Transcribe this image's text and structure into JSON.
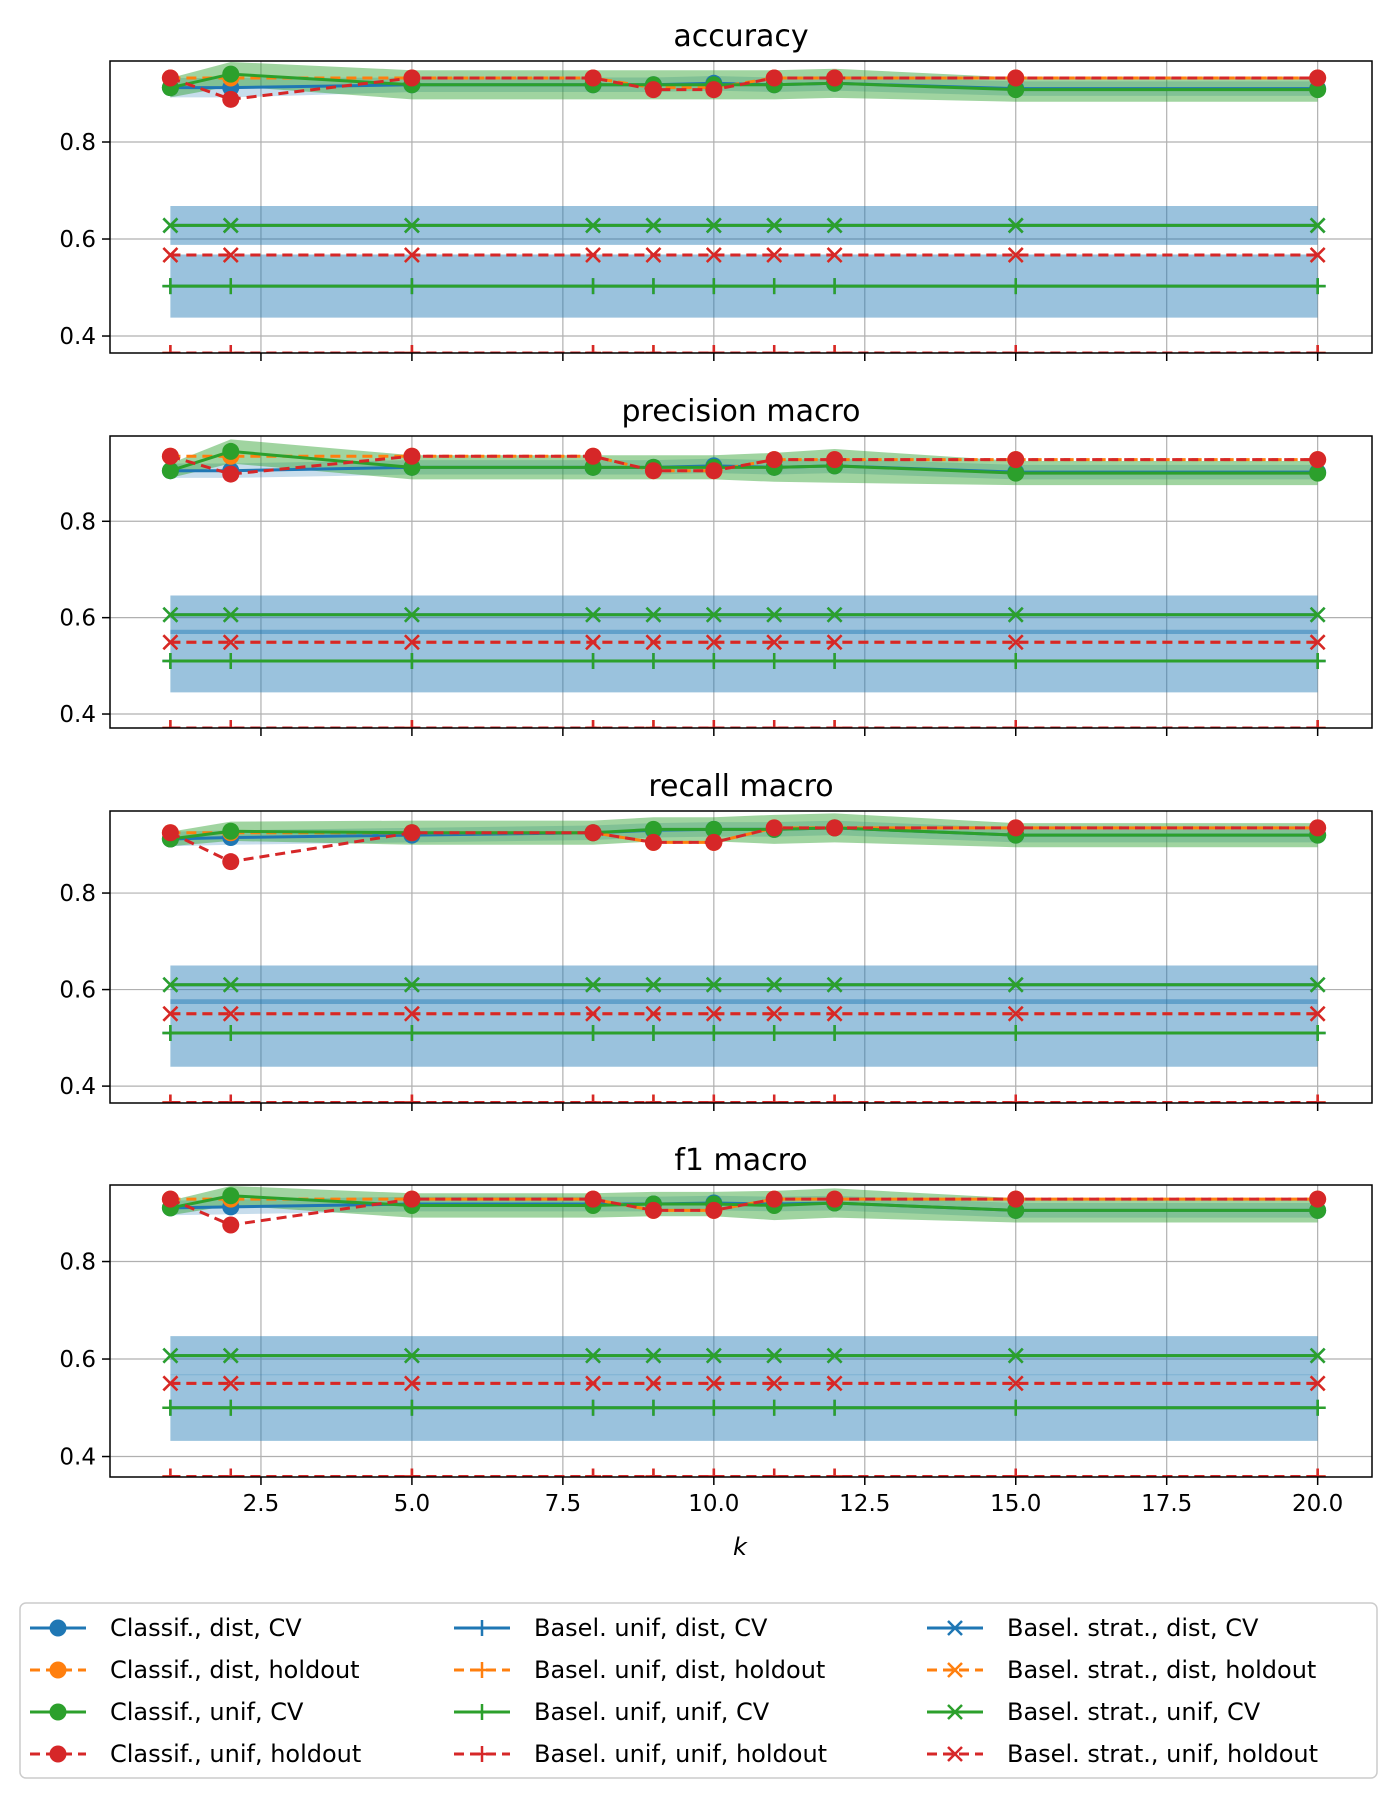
{
  "chart_data": {
    "type": "line",
    "xlabel": "k",
    "xlim": [
      0.0,
      20.9
    ],
    "x_ticks": [
      "2.5",
      "5.0",
      "7.5",
      "10.0",
      "12.5",
      "15.0",
      "17.5",
      "20.0"
    ],
    "y_ticks": [
      "0.4",
      "0.6",
      "0.8"
    ],
    "grid": true,
    "legend_position": "bottom, 3 columns",
    "colors": {
      "blue": "#1f77b4",
      "orange": "#ff7f0e",
      "green": "#2ca02c",
      "red": "#d62728"
    },
    "legend": [
      {
        "label": "Classif., dist, CV",
        "color": "#1f77b4",
        "dash": "solid",
        "marker": "o"
      },
      {
        "label": "Classif., dist, holdout",
        "color": "#ff7f0e",
        "dash": "dashed",
        "marker": "o"
      },
      {
        "label": "Classif., unif, CV",
        "color": "#2ca02c",
        "dash": "solid",
        "marker": "o"
      },
      {
        "label": "Classif., unif, holdout",
        "color": "#d62728",
        "dash": "dashed",
        "marker": "o"
      },
      {
        "label": "Basel. unif, dist, CV",
        "color": "#1f77b4",
        "dash": "solid",
        "marker": "+"
      },
      {
        "label": "Basel. unif, dist, holdout",
        "color": "#ff7f0e",
        "dash": "dashed",
        "marker": "+"
      },
      {
        "label": "Basel. unif, unif, CV",
        "color": "#2ca02c",
        "dash": "solid",
        "marker": "+"
      },
      {
        "label": "Basel. unif, unif, holdout",
        "color": "#d62728",
        "dash": "dashed",
        "marker": "+"
      },
      {
        "label": "Basel. strat., dist, CV",
        "color": "#1f77b4",
        "dash": "solid",
        "marker": "x"
      },
      {
        "label": "Basel. strat., dist, holdout",
        "color": "#ff7f0e",
        "dash": "dashed",
        "marker": "x"
      },
      {
        "label": "Basel. strat., unif, CV",
        "color": "#2ca02c",
        "dash": "solid",
        "marker": "x"
      },
      {
        "label": "Basel. strat., unif, holdout",
        "color": "#d62728",
        "dash": "dashed",
        "marker": "x"
      }
    ],
    "x": [
      1,
      2,
      5,
      8,
      9,
      10,
      11,
      12,
      15,
      20
    ],
    "panels": [
      {
        "title": "accuracy",
        "ylim": [
          0.365,
          0.967
        ],
        "series": [
          {
            "values": [
              0.912,
              0.912,
              0.918,
              0.918,
              0.918,
              0.921,
              0.918,
              0.921,
              0.91,
              0.91
            ],
            "band": [
              0.02,
              0.02,
              0.015,
              0.015,
              0.015,
              0.015,
              0.015,
              0.015,
              0.015,
              0.015
            ]
          },
          {
            "values": [
              0.932,
              0.932,
              0.932,
              0.932,
              0.912,
              0.912,
              0.932,
              0.932,
              0.932,
              0.932
            ]
          },
          {
            "values": [
              0.912,
              0.94,
              0.918,
              0.918,
              0.918,
              0.918,
              0.918,
              0.921,
              0.908,
              0.908
            ],
            "band": [
              0.02,
              0.025,
              0.03,
              0.03,
              0.03,
              0.03,
              0.03,
              0.03,
              0.025,
              0.025
            ]
          },
          {
            "values": [
              0.932,
              0.888,
              0.932,
              0.932,
              0.908,
              0.908,
              0.932,
              0.932,
              0.932,
              0.932
            ]
          },
          {
            "values": [
              0.503,
              0.503,
              0.503,
              0.503,
              0.503,
              0.503,
              0.503,
              0.503,
              0.503,
              0.503
            ],
            "band": [
              0.065,
              0.065,
              0.065,
              0.065,
              0.065,
              0.065,
              0.065,
              0.065,
              0.065,
              0.065
            ]
          },
          {
            "values": [
              0.365,
              0.365,
              0.365,
              0.365,
              0.365,
              0.365,
              0.365,
              0.365,
              0.365,
              0.365
            ]
          },
          {
            "values": [
              0.503,
              0.503,
              0.503,
              0.503,
              0.503,
              0.503,
              0.503,
              0.503,
              0.503,
              0.503
            ]
          },
          {
            "values": [
              0.365,
              0.365,
              0.365,
              0.365,
              0.365,
              0.365,
              0.365,
              0.365,
              0.365,
              0.365
            ]
          },
          {
            "values": [
              0.628,
              0.628,
              0.628,
              0.628,
              0.628,
              0.628,
              0.628,
              0.628,
              0.628,
              0.628
            ],
            "band": [
              0.04,
              0.04,
              0.04,
              0.04,
              0.04,
              0.04,
              0.04,
              0.04,
              0.04,
              0.04
            ]
          },
          {
            "values": [
              0.567,
              0.567,
              0.567,
              0.567,
              0.567,
              0.567,
              0.567,
              0.567,
              0.567,
              0.567
            ]
          },
          {
            "values": [
              0.628,
              0.628,
              0.628,
              0.628,
              0.628,
              0.628,
              0.628,
              0.628,
              0.628,
              0.628
            ]
          },
          {
            "values": [
              0.567,
              0.567,
              0.567,
              0.567,
              0.567,
              0.567,
              0.567,
              0.567,
              0.567,
              0.567
            ]
          }
        ]
      },
      {
        "title": "precision macro",
        "ylim": [
          0.371,
          0.977
        ],
        "series": [
          {
            "values": [
              0.905,
              0.905,
              0.912,
              0.912,
              0.912,
              0.915,
              0.912,
              0.915,
              0.902,
              0.902
            ],
            "band": [
              0.015,
              0.015,
              0.015,
              0.015,
              0.015,
              0.015,
              0.015,
              0.015,
              0.015,
              0.015
            ]
          },
          {
            "values": [
              0.935,
              0.935,
              0.935,
              0.935,
              0.905,
              0.905,
              0.928,
              0.928,
              0.928,
              0.928
            ]
          },
          {
            "values": [
              0.905,
              0.945,
              0.912,
              0.912,
              0.912,
              0.912,
              0.912,
              0.915,
              0.9,
              0.9
            ],
            "band": [
              0.015,
              0.025,
              0.025,
              0.025,
              0.025,
              0.025,
              0.03,
              0.035,
              0.025,
              0.025
            ]
          },
          {
            "values": [
              0.935,
              0.898,
              0.935,
              0.935,
              0.905,
              0.905,
              0.928,
              0.928,
              0.928,
              0.928
            ]
          },
          {
            "values": [
              0.51,
              0.51,
              0.51,
              0.51,
              0.51,
              0.51,
              0.51,
              0.51,
              0.51,
              0.51
            ],
            "band": [
              0.065,
              0.065,
              0.065,
              0.065,
              0.065,
              0.065,
              0.065,
              0.065,
              0.065,
              0.065
            ]
          },
          {
            "values": [
              0.371,
              0.371,
              0.371,
              0.371,
              0.371,
              0.371,
              0.371,
              0.371,
              0.371,
              0.371
            ]
          },
          {
            "values": [
              0.51,
              0.51,
              0.51,
              0.51,
              0.51,
              0.51,
              0.51,
              0.51,
              0.51,
              0.51
            ]
          },
          {
            "values": [
              0.371,
              0.371,
              0.371,
              0.371,
              0.371,
              0.371,
              0.371,
              0.371,
              0.371,
              0.371
            ]
          },
          {
            "values": [
              0.606,
              0.606,
              0.606,
              0.606,
              0.606,
              0.606,
              0.606,
              0.606,
              0.606,
              0.606
            ],
            "band": [
              0.04,
              0.04,
              0.04,
              0.04,
              0.04,
              0.04,
              0.04,
              0.04,
              0.04,
              0.04
            ]
          },
          {
            "values": [
              0.549,
              0.549,
              0.549,
              0.549,
              0.549,
              0.549,
              0.549,
              0.549,
              0.549,
              0.549
            ]
          },
          {
            "values": [
              0.606,
              0.606,
              0.606,
              0.606,
              0.606,
              0.606,
              0.606,
              0.606,
              0.606,
              0.606
            ]
          },
          {
            "values": [
              0.549,
              0.549,
              0.549,
              0.549,
              0.549,
              0.549,
              0.549,
              0.549,
              0.549,
              0.549
            ]
          }
        ]
      },
      {
        "title": "recall macro",
        "ylim": [
          0.365,
          0.97
        ],
        "series": [
          {
            "values": [
              0.912,
              0.915,
              0.92,
              0.925,
              0.93,
              0.932,
              0.932,
              0.935,
              0.92,
              0.92
            ],
            "band": [
              0.015,
              0.015,
              0.015,
              0.015,
              0.015,
              0.015,
              0.015,
              0.015,
              0.015,
              0.015
            ]
          },
          {
            "values": [
              0.925,
              0.925,
              0.925,
              0.925,
              0.905,
              0.905,
              0.935,
              0.935,
              0.935,
              0.935
            ]
          },
          {
            "values": [
              0.912,
              0.928,
              0.925,
              0.925,
              0.932,
              0.932,
              0.932,
              0.935,
              0.92,
              0.92
            ],
            "band": [
              0.015,
              0.02,
              0.025,
              0.025,
              0.025,
              0.025,
              0.03,
              0.03,
              0.025,
              0.025
            ]
          },
          {
            "values": [
              0.925,
              0.865,
              0.925,
              0.925,
              0.905,
              0.905,
              0.935,
              0.935,
              0.935,
              0.935
            ]
          },
          {
            "values": [
              0.51,
              0.51,
              0.51,
              0.51,
              0.51,
              0.51,
              0.51,
              0.51,
              0.51,
              0.51
            ],
            "band": [
              0.07,
              0.07,
              0.07,
              0.07,
              0.07,
              0.07,
              0.07,
              0.07,
              0.07,
              0.07
            ]
          },
          {
            "values": [
              0.366,
              0.366,
              0.366,
              0.366,
              0.366,
              0.366,
              0.366,
              0.366,
              0.366,
              0.366
            ]
          },
          {
            "values": [
              0.51,
              0.51,
              0.51,
              0.51,
              0.51,
              0.51,
              0.51,
              0.51,
              0.51,
              0.51
            ]
          },
          {
            "values": [
              0.366,
              0.366,
              0.366,
              0.366,
              0.366,
              0.366,
              0.366,
              0.366,
              0.366,
              0.366
            ]
          },
          {
            "values": [
              0.61,
              0.61,
              0.61,
              0.61,
              0.61,
              0.61,
              0.61,
              0.61,
              0.61,
              0.61
            ],
            "band": [
              0.04,
              0.04,
              0.04,
              0.04,
              0.04,
              0.04,
              0.04,
              0.04,
              0.04,
              0.04
            ]
          },
          {
            "values": [
              0.55,
              0.55,
              0.55,
              0.55,
              0.55,
              0.55,
              0.55,
              0.55,
              0.55,
              0.55
            ]
          },
          {
            "values": [
              0.61,
              0.61,
              0.61,
              0.61,
              0.61,
              0.61,
              0.61,
              0.61,
              0.61,
              0.61
            ]
          },
          {
            "values": [
              0.55,
              0.55,
              0.55,
              0.55,
              0.55,
              0.55,
              0.55,
              0.55,
              0.55,
              0.55
            ]
          }
        ]
      },
      {
        "title": "f1 macro",
        "ylim": [
          0.358,
          0.957
        ],
        "series": [
          {
            "values": [
              0.91,
              0.912,
              0.918,
              0.918,
              0.918,
              0.92,
              0.918,
              0.92,
              0.905,
              0.905
            ],
            "band": [
              0.015,
              0.015,
              0.015,
              0.015,
              0.015,
              0.015,
              0.015,
              0.015,
              0.015,
              0.015
            ]
          },
          {
            "values": [
              0.928,
              0.928,
              0.928,
              0.928,
              0.905,
              0.905,
              0.928,
              0.928,
              0.928,
              0.928
            ]
          },
          {
            "values": [
              0.91,
              0.935,
              0.915,
              0.915,
              0.918,
              0.918,
              0.915,
              0.92,
              0.905,
              0.905
            ],
            "band": [
              0.015,
              0.02,
              0.025,
              0.025,
              0.025,
              0.025,
              0.03,
              0.03,
              0.025,
              0.025
            ]
          },
          {
            "values": [
              0.928,
              0.875,
              0.928,
              0.928,
              0.905,
              0.905,
              0.928,
              0.928,
              0.928,
              0.928
            ]
          },
          {
            "values": [
              0.5,
              0.5,
              0.5,
              0.5,
              0.5,
              0.5,
              0.5,
              0.5,
              0.5,
              0.5
            ],
            "band": [
              0.068,
              0.068,
              0.068,
              0.068,
              0.068,
              0.068,
              0.068,
              0.068,
              0.068,
              0.068
            ]
          },
          {
            "values": [
              0.359,
              0.359,
              0.359,
              0.359,
              0.359,
              0.359,
              0.359,
              0.359,
              0.359,
              0.359
            ]
          },
          {
            "values": [
              0.5,
              0.5,
              0.5,
              0.5,
              0.5,
              0.5,
              0.5,
              0.5,
              0.5,
              0.5
            ]
          },
          {
            "values": [
              0.359,
              0.359,
              0.359,
              0.359,
              0.359,
              0.359,
              0.359,
              0.359,
              0.359,
              0.359
            ]
          },
          {
            "values": [
              0.607,
              0.607,
              0.607,
              0.607,
              0.607,
              0.607,
              0.607,
              0.607,
              0.607,
              0.607
            ],
            "band": [
              0.04,
              0.04,
              0.04,
              0.04,
              0.04,
              0.04,
              0.04,
              0.04,
              0.04,
              0.04
            ]
          },
          {
            "values": [
              0.55,
              0.55,
              0.55,
              0.55,
              0.55,
              0.55,
              0.55,
              0.55,
              0.55,
              0.55
            ]
          },
          {
            "values": [
              0.607,
              0.607,
              0.607,
              0.607,
              0.607,
              0.607,
              0.607,
              0.607,
              0.607,
              0.607
            ]
          },
          {
            "values": [
              0.55,
              0.55,
              0.55,
              0.55,
              0.55,
              0.55,
              0.55,
              0.55,
              0.55,
              0.55
            ]
          }
        ]
      }
    ]
  }
}
